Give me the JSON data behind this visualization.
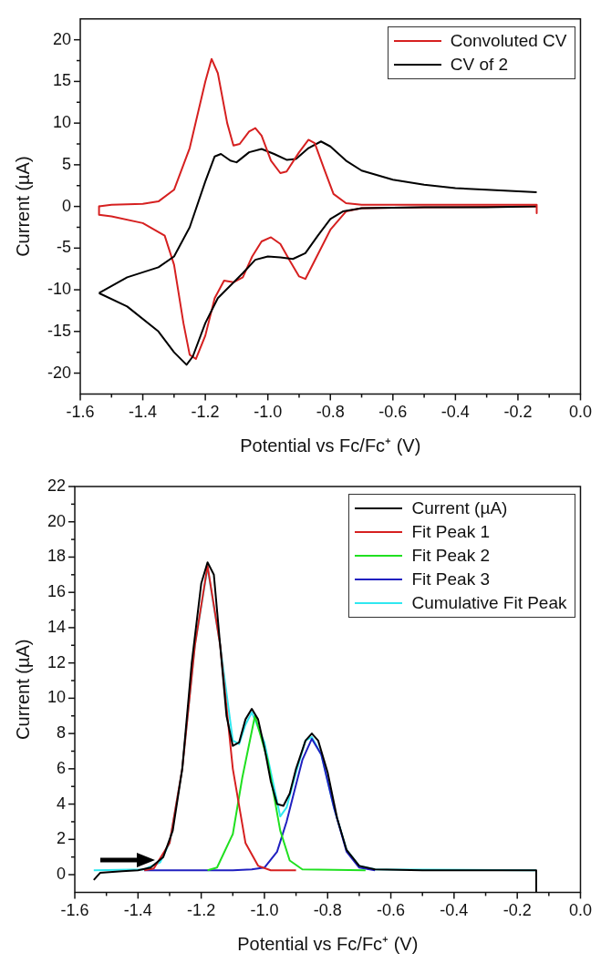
{
  "chart_data": [
    {
      "type": "line",
      "xlabel": "Potential vs Fc/Fc⁺ (V)",
      "ylabel": "Current (µA)",
      "xlim": [
        -1.6,
        0
      ],
      "ylim": [
        -22.5,
        22.5
      ],
      "xticks": [
        -1.6,
        {
          "value": -1.5,
          "label": null
        },
        -1.4,
        {
          "value": -1.3,
          "label": null
        },
        -1.2,
        {
          "value": -1.1,
          "label": null
        },
        {
          "value": -1.0,
          "label": "-1.0"
        },
        {
          "value": -0.9,
          "label": null
        },
        -0.8,
        {
          "value": -0.7,
          "label": null
        },
        -0.6,
        {
          "value": -0.5,
          "label": null
        },
        -0.4,
        {
          "value": -0.3,
          "label": null
        },
        -0.2,
        {
          "value": -0.1,
          "label": null
        },
        {
          "value": 0,
          "label": "0.0"
        }
      ],
      "yticks": [
        -20,
        {
          "value": -17.5,
          "label": null
        },
        -15,
        {
          "value": -12.5,
          "label": null
        },
        -10,
        {
          "value": -7.5,
          "label": null
        },
        -5,
        {
          "value": -2.5,
          "label": null
        },
        0,
        {
          "value": 2.5,
          "label": null
        },
        5,
        {
          "value": 7.5,
          "label": null
        },
        10,
        {
          "value": 12.5,
          "label": null
        },
        15,
        {
          "value": 17.5,
          "label": null
        },
        20
      ],
      "legend": "top right",
      "grid": false,
      "series": [
        {
          "name": "Convoluted CV",
          "color": "#d62020",
          "x": [
            -1.54,
            -1.5,
            -1.4,
            -1.35,
            -1.3,
            -1.25,
            -1.2,
            -1.18,
            -1.16,
            -1.13,
            -1.11,
            -1.09,
            -1.06,
            -1.04,
            -1.02,
            -0.99,
            -0.96,
            -0.94,
            -0.9,
            -0.87,
            -0.85,
            -0.82,
            -0.79,
            -0.75,
            -0.7,
            -0.5,
            -0.14,
            -0.14
          ],
          "values": [
            0,
            0.2,
            0.3,
            0.6,
            2,
            7,
            15,
            17.7,
            16,
            10,
            7.3,
            7.5,
            9,
            9.4,
            8.5,
            5.5,
            4,
            4.2,
            6.5,
            8,
            7.6,
            4.5,
            1.5,
            0.4,
            0.2,
            0.2,
            0.2,
            -0.8
          ]
        },
        {
          "name": "CV of 2",
          "color": "#000000",
          "x": [
            -1.54,
            -1.45,
            -1.35,
            -1.3,
            -1.25,
            -1.2,
            -1.17,
            -1.15,
            -1.12,
            -1.1,
            -1.06,
            -1.02,
            -0.98,
            -0.94,
            -0.91,
            -0.87,
            -0.83,
            -0.8,
            -0.75,
            -0.7,
            -0.6,
            -0.5,
            -0.4,
            -0.3,
            -0.14
          ],
          "values": [
            -10.4,
            -8.5,
            -7.3,
            -6,
            -2.5,
            3,
            6,
            6.3,
            5.5,
            5.3,
            6.5,
            6.9,
            6.3,
            5.6,
            5.7,
            7,
            7.8,
            7.2,
            5.5,
            4.3,
            3.2,
            2.6,
            2.2,
            2,
            1.7
          ]
        },
        {
          "color": "#000000",
          "x": [
            -1.54,
            -1.45,
            -1.35,
            -1.3,
            -1.26,
            -1.24,
            -1.2,
            -1.16,
            -1.12,
            -1.08,
            -1.04,
            -1.0,
            -0.96,
            -0.92,
            -0.88,
            -0.84,
            -0.8,
            -0.76,
            -0.7,
            -0.5,
            -0.3,
            -0.14
          ],
          "values": [
            -10.4,
            -12,
            -15,
            -17.5,
            -19,
            -18,
            -14,
            -11,
            -9.5,
            -8,
            -6.4,
            -6,
            -6.1,
            -6.3,
            -5.6,
            -3.5,
            -1.5,
            -0.6,
            -0.2,
            -0.1,
            -0.1,
            0
          ]
        },
        {
          "color": "#d62020",
          "x": [
            -1.54,
            -1.54,
            -1.5,
            -1.4,
            -1.33,
            -1.3,
            -1.27,
            -1.25,
            -1.23,
            -1.2,
            -1.17,
            -1.14,
            -1.11,
            -1.08,
            -1.05,
            -1.02,
            -0.99,
            -0.96,
            -0.93,
            -0.9,
            -0.88,
            -0.85,
            -0.8,
            -0.75,
            -0.7,
            -0.5,
            -0.14
          ],
          "values": [
            0,
            -1,
            -1.2,
            -2,
            -3.5,
            -7,
            -14,
            -17.8,
            -18.3,
            -15.5,
            -11,
            -8.9,
            -9.1,
            -8.5,
            -6,
            -4.2,
            -3.7,
            -4.5,
            -6.5,
            -8.4,
            -8.7,
            -6.5,
            -2.8,
            -0.6,
            -0.2,
            -0.1,
            0
          ]
        }
      ]
    },
    {
      "type": "line",
      "xlabel": "Potential vs Fc/Fc⁺ (V)",
      "ylabel": "Current (µA)",
      "xlim": [
        -1.6,
        0
      ],
      "ylim": [
        -1,
        22
      ],
      "xticks": [
        -1.6,
        {
          "value": -1.5,
          "label": null
        },
        -1.4,
        {
          "value": -1.3,
          "label": null
        },
        -1.2,
        {
          "value": -1.1,
          "label": null
        },
        {
          "value": -1.0,
          "label": "-1.0"
        },
        {
          "value": -0.9,
          "label": null
        },
        -0.8,
        {
          "value": -0.7,
          "label": null
        },
        -0.6,
        {
          "value": -0.5,
          "label": null
        },
        -0.4,
        {
          "value": -0.3,
          "label": null
        },
        -0.2,
        {
          "value": -0.1,
          "label": null
        },
        {
          "value": 0,
          "label": "0.0"
        }
      ],
      "yticks": [
        0,
        {
          "value": 1,
          "label": null
        },
        2,
        {
          "value": 3,
          "label": null
        },
        4,
        {
          "value": 5,
          "label": null
        },
        6,
        {
          "value": 7,
          "label": null
        },
        8,
        {
          "value": 9,
          "label": null
        },
        10,
        {
          "value": 11,
          "label": null
        },
        12,
        {
          "value": 13,
          "label": null
        },
        14,
        {
          "value": 15,
          "label": null
        },
        16,
        {
          "value": 17,
          "label": null
        },
        18,
        {
          "value": 19,
          "label": null
        },
        20,
        {
          "value": 21,
          "label": null
        },
        22
      ],
      "legend": "top right",
      "grid": false,
      "series": [
        {
          "name": "Current (µA)",
          "color": "#000000",
          "x": [
            -1.54,
            -1.52,
            -1.45,
            -1.4,
            -1.36,
            -1.32,
            -1.29,
            -1.26,
            -1.23,
            -1.2,
            -1.18,
            -1.16,
            -1.14,
            -1.12,
            -1.1,
            -1.08,
            -1.06,
            -1.04,
            -1.02,
            -1.0,
            -0.98,
            -0.96,
            -0.94,
            -0.92,
            -0.9,
            -0.87,
            -0.85,
            -0.83,
            -0.8,
            -0.77,
            -0.74,
            -0.7,
            -0.65,
            -0.5,
            -0.3,
            -0.14,
            -0.14
          ],
          "values": [
            -0.3,
            0.1,
            0.2,
            0.25,
            0.4,
            1,
            2.5,
            6,
            12,
            16.5,
            17.7,
            17,
            13,
            9,
            7.3,
            7.5,
            8.8,
            9.4,
            8.8,
            7.2,
            5.3,
            4,
            3.9,
            4.6,
            6,
            7.6,
            8,
            7.6,
            5.8,
            3.2,
            1.4,
            0.5,
            0.3,
            0.25,
            0.25,
            0.25,
            -1
          ]
        },
        {
          "name": "Fit Peak 1",
          "color": "#d62020",
          "x": [
            -1.38,
            -1.35,
            -1.3,
            -1.26,
            -1.22,
            -1.18,
            -1.14,
            -1.1,
            -1.06,
            -1.02,
            -0.98,
            -0.9
          ],
          "values": [
            0.25,
            0.35,
            1.8,
            6,
            13,
            17.5,
            13,
            6,
            1.8,
            0.5,
            0.25,
            0.25
          ]
        },
        {
          "name": "Fit Peak 2",
          "color": "#20e020",
          "x": [
            -1.18,
            -1.15,
            -1.1,
            -1.07,
            -1.03,
            -0.99,
            -0.95,
            -0.92,
            -0.88,
            -0.68
          ],
          "values": [
            0.25,
            0.4,
            2.3,
            5.5,
            9,
            6.5,
            2.5,
            0.8,
            0.3,
            0.25
          ]
        },
        {
          "name": "Fit Peak 3",
          "color": "#2020c0",
          "x": [
            -1.38,
            -1.1,
            -1.04,
            -1.0,
            -0.96,
            -0.93,
            -0.91,
            -0.88,
            -0.85,
            -0.82,
            -0.78,
            -0.74,
            -0.7,
            -0.65
          ],
          "values": [
            0.25,
            0.25,
            0.3,
            0.4,
            1.3,
            3,
            4.4,
            6.5,
            7.7,
            6.8,
            3.8,
            1.3,
            0.4,
            0.25
          ]
        },
        {
          "name": "Cumulative Fit Peak",
          "color": "#30e8f0",
          "x": [
            -1.54,
            -1.38,
            -1.33,
            -1.3,
            -1.26,
            -1.22,
            -1.18,
            -1.14,
            -1.1,
            -1.08,
            -1.06,
            -1.04,
            -1.0,
            -0.97,
            -0.95,
            -0.93,
            -0.9,
            -0.87,
            -0.85,
            -0.82,
            -0.78,
            -0.74,
            -0.7,
            -0.65,
            -0.14
          ],
          "values": [
            0.25,
            0.3,
            0.7,
            1.8,
            6,
            13,
            17.4,
            13,
            7.6,
            7.4,
            8.5,
            9.2,
            7.5,
            5,
            3.3,
            3.8,
            5.8,
            7.6,
            7.8,
            6.8,
            3.8,
            1.4,
            0.5,
            0.3,
            0.25
          ]
        }
      ]
    }
  ]
}
